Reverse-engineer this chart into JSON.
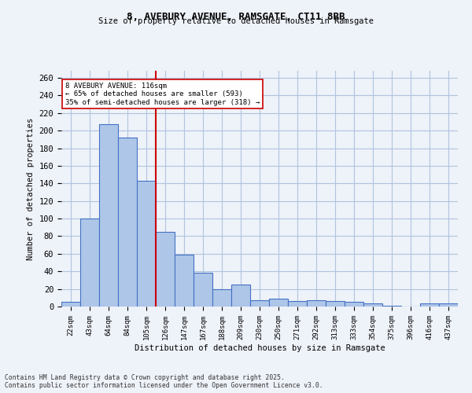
{
  "title_line1": "8, AVEBURY AVENUE, RAMSGATE, CT11 8BB",
  "title_line2": "Size of property relative to detached houses in Ramsgate",
  "xlabel": "Distribution of detached houses by size in Ramsgate",
  "ylabel": "Number of detached properties",
  "categories": [
    "22sqm",
    "43sqm",
    "64sqm",
    "84sqm",
    "105sqm",
    "126sqm",
    "147sqm",
    "167sqm",
    "188sqm",
    "209sqm",
    "230sqm",
    "250sqm",
    "271sqm",
    "292sqm",
    "313sqm",
    "333sqm",
    "354sqm",
    "375sqm",
    "396sqm",
    "416sqm",
    "437sqm"
  ],
  "values": [
    5,
    100,
    207,
    192,
    143,
    85,
    59,
    38,
    20,
    25,
    7,
    9,
    6,
    7,
    6,
    5,
    4,
    1,
    0,
    4,
    4
  ],
  "bar_color": "#aec6e8",
  "bar_edge_color": "#4472c4",
  "property_line_x": 4.5,
  "property_line_color": "#cc0000",
  "annotation_text": "8 AVEBURY AVENUE: 116sqm\n← 65% of detached houses are smaller (593)\n35% of semi-detached houses are larger (318) →",
  "annotation_box_color": "#ffffff",
  "annotation_box_edge_color": "#cc0000",
  "ylim": [
    0,
    268
  ],
  "yticks": [
    0,
    20,
    40,
    60,
    80,
    100,
    120,
    140,
    160,
    180,
    200,
    220,
    240,
    260
  ],
  "grid_color": "#b0c4de",
  "background_color": "#eef2f9",
  "footer_line1": "Contains HM Land Registry data © Crown copyright and database right 2025.",
  "footer_line2": "Contains public sector information licensed under the Open Government Licence v3.0."
}
